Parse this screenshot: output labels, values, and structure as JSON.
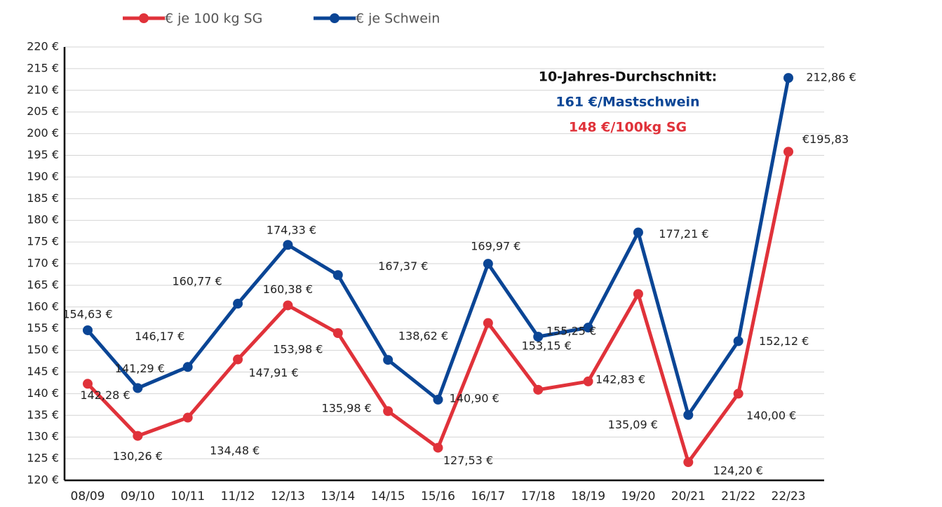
{
  "chart_data": {
    "type": "line",
    "categories": [
      "08/09",
      "09/10",
      "10/11",
      "11/12",
      "12/13",
      "13/14",
      "14/15",
      "15/16",
      "16/17",
      "17/18",
      "18/19",
      "19/20",
      "20/21",
      "21/22",
      "22/23"
    ],
    "series": [
      {
        "name": "€ je 100 kg SG",
        "color": "#e0323a",
        "values": [
          142.28,
          130.26,
          134.48,
          147.91,
          160.38,
          153.98,
          135.98,
          127.53,
          156.3,
          140.9,
          142.83,
          163.0,
          124.2,
          140.0,
          195.83
        ],
        "value_labels": [
          "142,28 €",
          "130,26 €",
          "134,48 €",
          "147,91 €",
          "160,38 €",
          "153,98 €",
          "135,98 €",
          "127,53 €",
          null,
          "140,90 €",
          "142,83 €",
          null,
          "124,20 €",
          "140,00 €",
          "€195,83"
        ]
      },
      {
        "name": "€ je Schwein",
        "color": "#0a4595",
        "values": [
          154.63,
          141.29,
          146.17,
          160.77,
          174.33,
          167.37,
          147.8,
          138.62,
          169.97,
          153.15,
          155.25,
          177.21,
          135.09,
          152.12,
          212.86
        ],
        "value_labels": [
          "154,63 €",
          "141,29 €",
          "146,17 €",
          "160,77 €",
          "174,33 €",
          "167,37 €",
          null,
          "138,62 €",
          "169,97 €",
          "153,15 €",
          "155,25 €",
          "177,21 €",
          "135,09 €",
          "152,12 €",
          "212,86 €"
        ]
      }
    ],
    "ylim": [
      120,
      220
    ],
    "yticks": [
      {
        "value": 120,
        "label": "120 €"
      },
      {
        "value": 125,
        "label": "125 €"
      },
      {
        "value": 130,
        "label": "130 €"
      },
      {
        "value": 135,
        "label": "135 €"
      },
      {
        "value": 140,
        "label": "140 €"
      },
      {
        "value": 145,
        "label": "145 €"
      },
      {
        "value": 150,
        "label": "150 €"
      },
      {
        "value": 155,
        "label": "155 €"
      },
      {
        "value": 160,
        "label": "160 €"
      },
      {
        "value": 165,
        "label": "165 €"
      },
      {
        "value": 170,
        "label": "170 €"
      },
      {
        "value": 175,
        "label": "175 €"
      },
      {
        "value": 180,
        "label": "180 €"
      },
      {
        "value": 185,
        "label": "185 €"
      },
      {
        "value": 190,
        "label": "190 €"
      },
      {
        "value": 195,
        "label": "195 €"
      },
      {
        "value": 200,
        "label": "200 €"
      },
      {
        "value": 205,
        "label": "205 €"
      },
      {
        "value": 210,
        "label": "210 €"
      },
      {
        "value": 215,
        "label": "215 €"
      },
      {
        "value": 220,
        "label": "220 €"
      }
    ],
    "grid": true,
    "annotations": [
      {
        "text": "10-Jahres-Durchschnitt:",
        "color": "#111111"
      },
      {
        "text": "161 €/Mastschwein",
        "color": "#0a4595"
      },
      {
        "text": "148 €/100kg SG",
        "color": "#e0323a"
      }
    ]
  }
}
